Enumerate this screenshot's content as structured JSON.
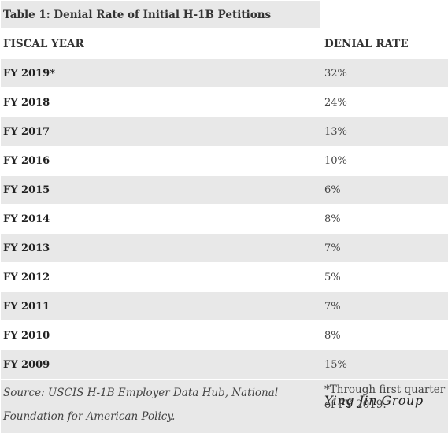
{
  "table": {
    "title": "Table 1: Denial Rate of Initial H-1B Petitions",
    "headers": [
      "FISCAL YEAR",
      "DENIAL RATE"
    ],
    "rows": [
      {
        "year": "FY 2019*",
        "rate": "32%"
      },
      {
        "year": "FY 2018",
        "rate": "24%"
      },
      {
        "year": "FY 2017",
        "rate": "13%"
      },
      {
        "year": "FY 2016",
        "rate": "10%"
      },
      {
        "year": "FY 2015",
        "rate": "6%"
      },
      {
        "year": "FY 2014",
        "rate": "8%"
      },
      {
        "year": "FY 2013",
        "rate": "7%"
      },
      {
        "year": "FY 2012",
        "rate": "5%"
      },
      {
        "year": "FY 2011",
        "rate": "7%"
      },
      {
        "year": "FY 2010",
        "rate": "8%"
      },
      {
        "year": "FY 2009",
        "rate": "15%"
      }
    ],
    "source": "Source: USCIS H-1B Employer Data Hub, National Foundation for American Policy.",
    "footnote": "*Through first quarter of FY 2019."
  },
  "watermark": "Ying Jin Group",
  "colors": {
    "band": "#e8e8e8",
    "text": "#333333"
  }
}
